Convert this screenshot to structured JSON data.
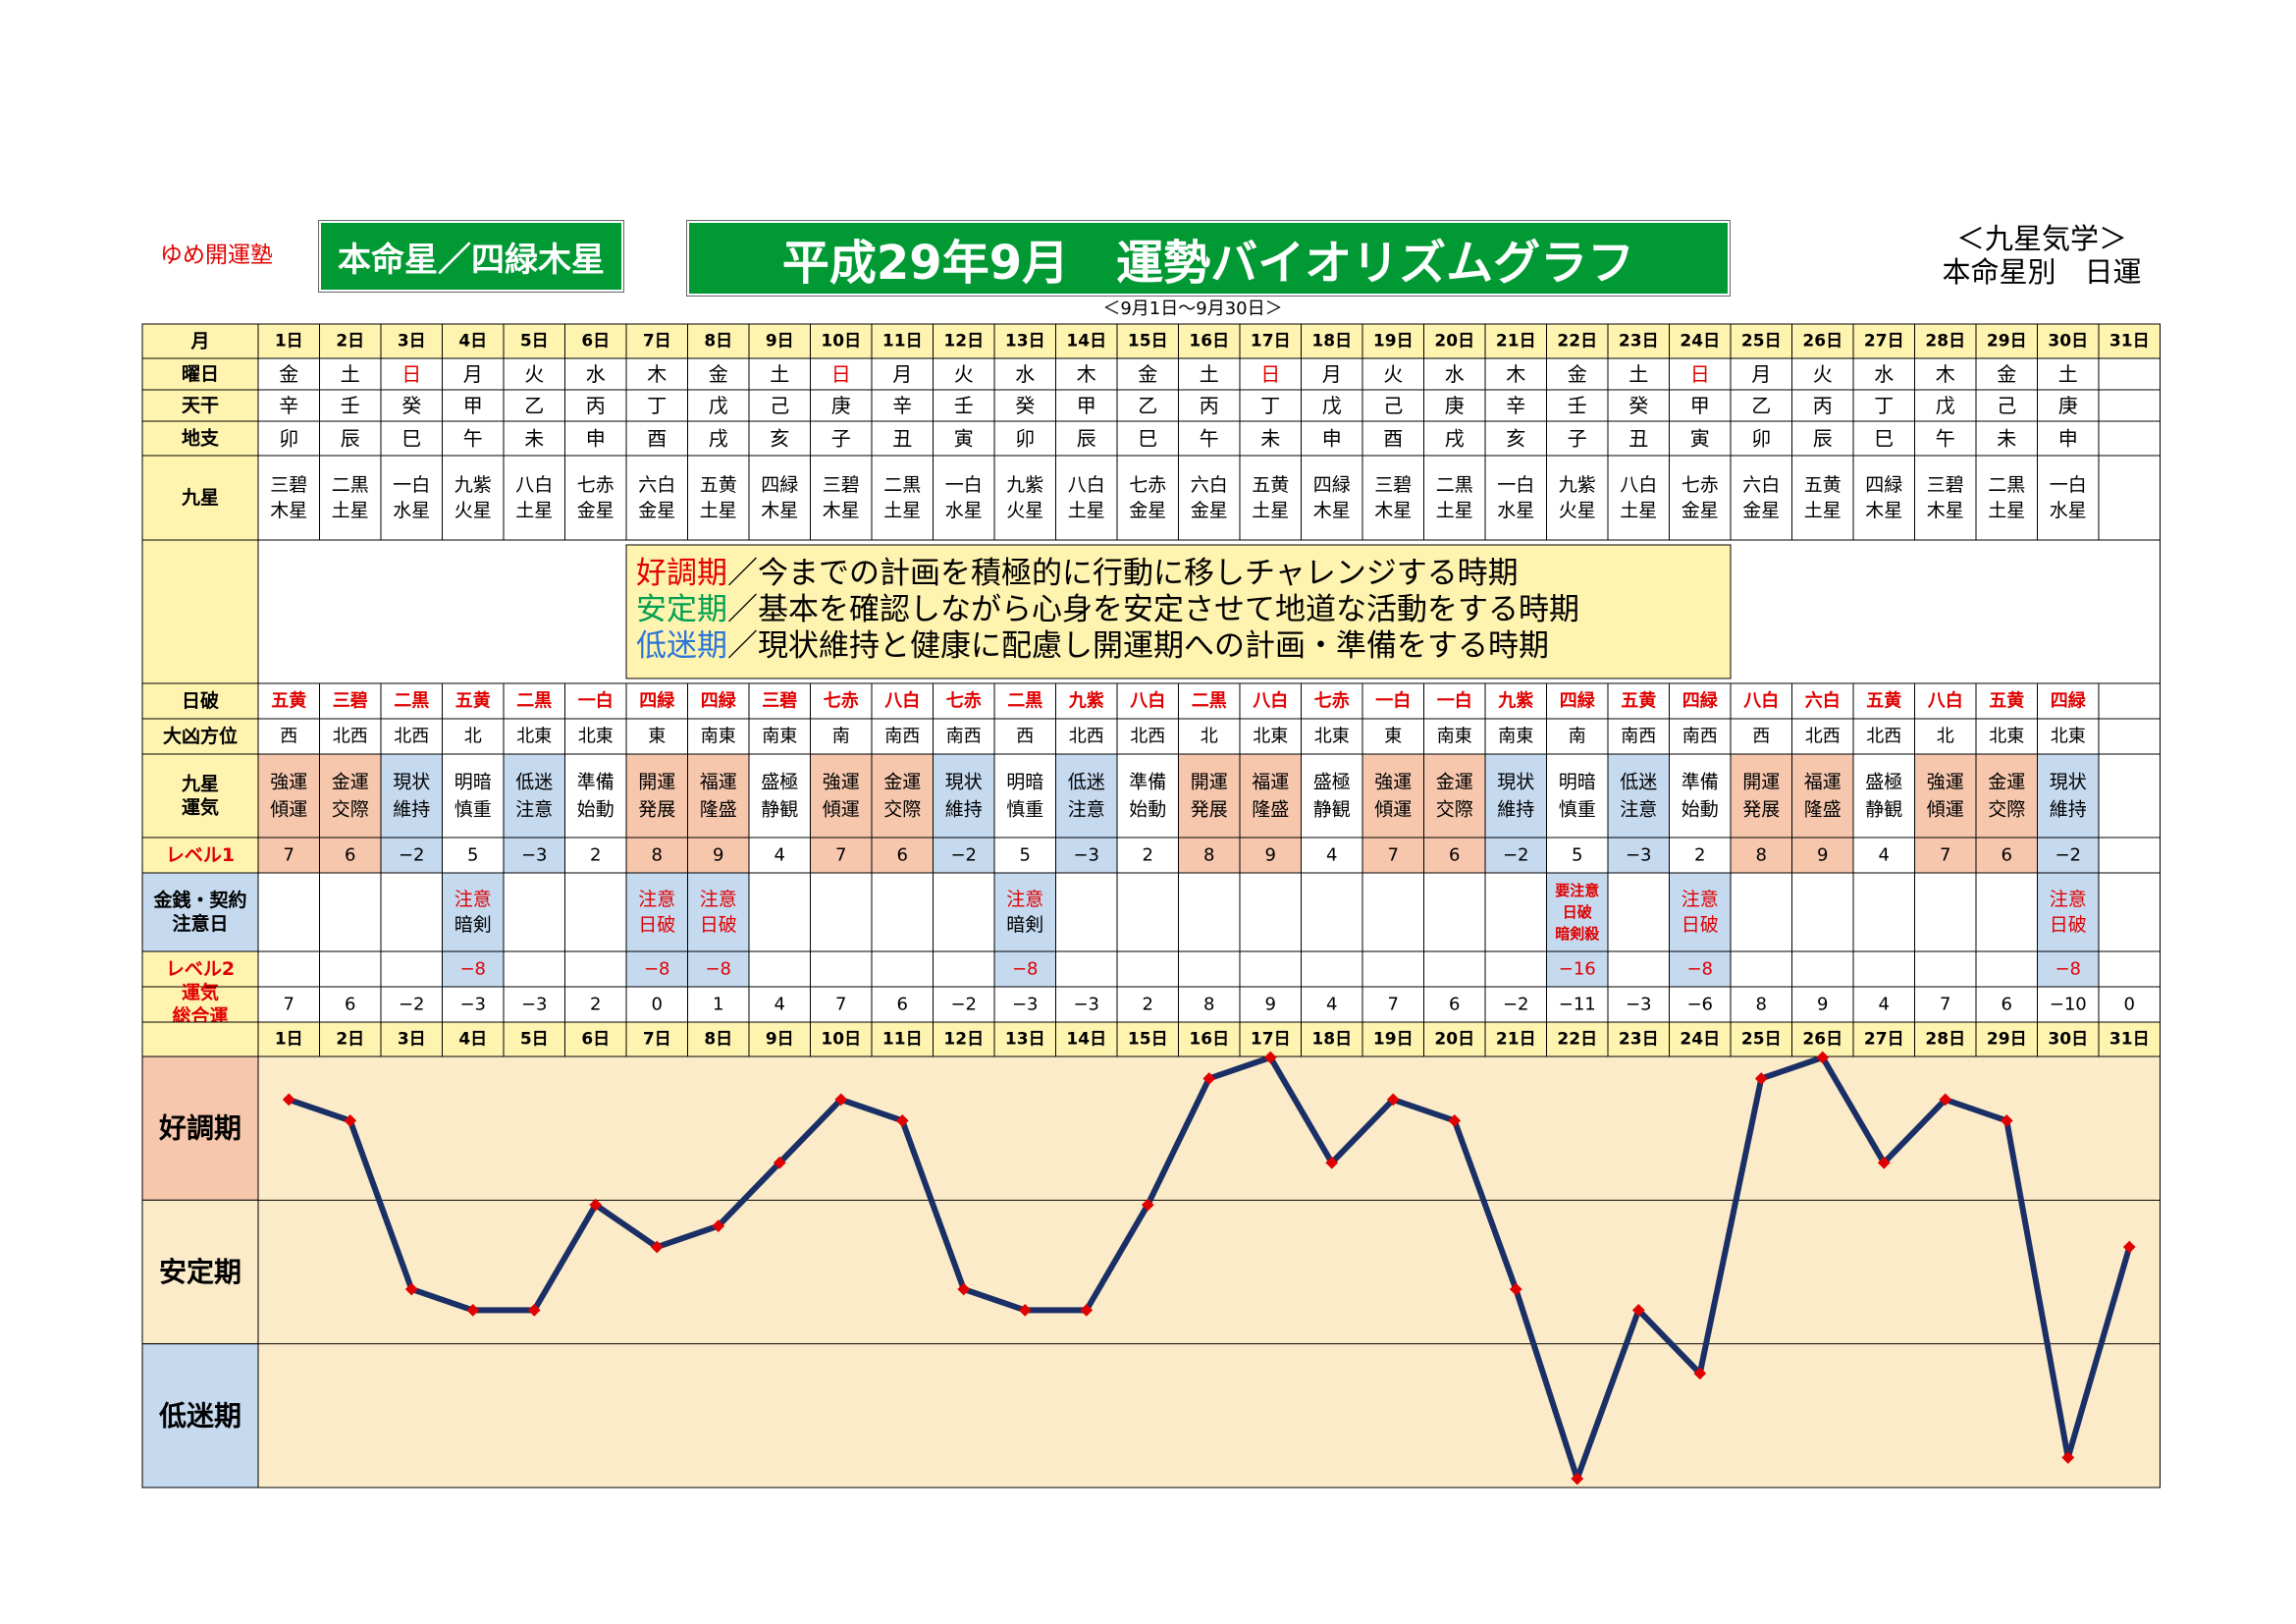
{
  "header": {
    "brand": "ゆめ開運塾",
    "honmeisei": "本命星／四緑木星",
    "title": "平成29年9月　運勢バイオリズムグラフ",
    "range": "＜9月1日～9月30日＞",
    "system_line1": "＜九星気学＞",
    "system_line2": "本命星別　日運"
  },
  "row_labels": {
    "month": "月",
    "weekday": "曜日",
    "tenkan": "天干",
    "chishi": "地支",
    "kyusei": "九星",
    "nippa": "日破",
    "daikyo": "大凶方位",
    "unki": [
      "九星",
      "運気"
    ],
    "level1": "レベル1",
    "caution": [
      "金銭・契約",
      "注意日"
    ],
    "level2": "レベル2",
    "total": [
      "運気",
      "総合運"
    ]
  },
  "days": [
    "1日",
    "2日",
    "3日",
    "4日",
    "5日",
    "6日",
    "7日",
    "8日",
    "9日",
    "10日",
    "11日",
    "12日",
    "13日",
    "14日",
    "15日",
    "16日",
    "17日",
    "18日",
    "19日",
    "20日",
    "21日",
    "22日",
    "23日",
    "24日",
    "25日",
    "26日",
    "27日",
    "28日",
    "29日",
    "30日",
    "31日"
  ],
  "weekday": [
    "金",
    "土",
    "日",
    "月",
    "火",
    "水",
    "木",
    "金",
    "土",
    "日",
    "月",
    "火",
    "水",
    "木",
    "金",
    "土",
    "日",
    "月",
    "火",
    "水",
    "木",
    "金",
    "土",
    "日",
    "月",
    "火",
    "水",
    "木",
    "金",
    "土",
    ""
  ],
  "tenkan": [
    "辛",
    "壬",
    "癸",
    "甲",
    "乙",
    "丙",
    "丁",
    "戊",
    "己",
    "庚",
    "辛",
    "壬",
    "癸",
    "甲",
    "乙",
    "丙",
    "丁",
    "戊",
    "己",
    "庚",
    "辛",
    "壬",
    "癸",
    "甲",
    "乙",
    "丙",
    "丁",
    "戊",
    "己",
    "庚",
    ""
  ],
  "chishi": [
    "卯",
    "辰",
    "巳",
    "午",
    "未",
    "申",
    "酉",
    "戌",
    "亥",
    "子",
    "丑",
    "寅",
    "卯",
    "辰",
    "巳",
    "午",
    "未",
    "申",
    "酉",
    "戌",
    "亥",
    "子",
    "丑",
    "寅",
    "卯",
    "辰",
    "巳",
    "午",
    "未",
    "申",
    ""
  ],
  "kyusei": [
    [
      "三碧",
      "木星"
    ],
    [
      "二黒",
      "土星"
    ],
    [
      "一白",
      "水星"
    ],
    [
      "九紫",
      "火星"
    ],
    [
      "八白",
      "土星"
    ],
    [
      "七赤",
      "金星"
    ],
    [
      "六白",
      "金星"
    ],
    [
      "五黄",
      "土星"
    ],
    [
      "四緑",
      "木星"
    ],
    [
      "三碧",
      "木星"
    ],
    [
      "二黒",
      "土星"
    ],
    [
      "一白",
      "水星"
    ],
    [
      "九紫",
      "火星"
    ],
    [
      "八白",
      "土星"
    ],
    [
      "七赤",
      "金星"
    ],
    [
      "六白",
      "金星"
    ],
    [
      "五黄",
      "土星"
    ],
    [
      "四緑",
      "木星"
    ],
    [
      "三碧",
      "木星"
    ],
    [
      "二黒",
      "土星"
    ],
    [
      "一白",
      "水星"
    ],
    [
      "九紫",
      "火星"
    ],
    [
      "八白",
      "土星"
    ],
    [
      "七赤",
      "金星"
    ],
    [
      "六白",
      "金星"
    ],
    [
      "五黄",
      "土星"
    ],
    [
      "四緑",
      "木星"
    ],
    [
      "三碧",
      "木星"
    ],
    [
      "二黒",
      "土星"
    ],
    [
      "一白",
      "水星"
    ],
    [
      "",
      ""
    ]
  ],
  "legend": [
    {
      "term": "好調期",
      "text": "／今までの計画を積極的に行動に移しチャレンジする時期",
      "color": "#e60000"
    },
    {
      "term": "安定期",
      "text": "／基本を確認しながら心身を安定させて地道な活動をする時期",
      "color": "#00a050"
    },
    {
      "term": "低迷期",
      "text": "／現状維持と健康に配慮し開運期への計画・準備をする時期",
      "color": "#2a74d6"
    }
  ],
  "nippa": [
    "五黄",
    "三碧",
    "二黒",
    "五黄",
    "二黒",
    "一白",
    "四緑",
    "四緑",
    "三碧",
    "七赤",
    "八白",
    "七赤",
    "二黒",
    "九紫",
    "八白",
    "二黒",
    "八白",
    "七赤",
    "一白",
    "一白",
    "九紫",
    "四緑",
    "五黄",
    "四緑",
    "八白",
    "六白",
    "五黄",
    "八白",
    "五黄",
    "四緑",
    ""
  ],
  "daikyo": [
    "西",
    "北西",
    "北西",
    "北",
    "北東",
    "北東",
    "東",
    "南東",
    "南東",
    "南",
    "南西",
    "南西",
    "西",
    "北西",
    "北西",
    "北",
    "北東",
    "北東",
    "東",
    "南東",
    "南東",
    "南",
    "南西",
    "南西",
    "西",
    "北西",
    "北西",
    "北",
    "北東",
    "北東",
    ""
  ],
  "unki": [
    [
      "強運",
      "傾運"
    ],
    [
      "金運",
      "交際"
    ],
    [
      "現状",
      "維持"
    ],
    [
      "明暗",
      "慎重"
    ],
    [
      "低迷",
      "注意"
    ],
    [
      "準備",
      "始動"
    ],
    [
      "開運",
      "発展"
    ],
    [
      "福運",
      "隆盛"
    ],
    [
      "盛極",
      "静観"
    ],
    [
      "強運",
      "傾運"
    ],
    [
      "金運",
      "交際"
    ],
    [
      "現状",
      "維持"
    ],
    [
      "明暗",
      "慎重"
    ],
    [
      "低迷",
      "注意"
    ],
    [
      "準備",
      "始動"
    ],
    [
      "開運",
      "発展"
    ],
    [
      "福運",
      "隆盛"
    ],
    [
      "盛極",
      "静観"
    ],
    [
      "強運",
      "傾運"
    ],
    [
      "金運",
      "交際"
    ],
    [
      "現状",
      "維持"
    ],
    [
      "明暗",
      "慎重"
    ],
    [
      "低迷",
      "注意"
    ],
    [
      "準備",
      "始動"
    ],
    [
      "開運",
      "発展"
    ],
    [
      "福運",
      "隆盛"
    ],
    [
      "盛極",
      "静観"
    ],
    [
      "強運",
      "傾運"
    ],
    [
      "金運",
      "交際"
    ],
    [
      "現状",
      "維持"
    ],
    [
      "",
      ""
    ]
  ],
  "level1": [
    "7",
    "6",
    "−2",
    "5",
    "−3",
    "2",
    "8",
    "9",
    "4",
    "7",
    "6",
    "−2",
    "5",
    "−3",
    "2",
    "8",
    "9",
    "4",
    "7",
    "6",
    "−2",
    "5",
    "−3",
    "2",
    "8",
    "9",
    "4",
    "7",
    "6",
    "−2",
    ""
  ],
  "caution": [
    [],
    [],
    [],
    [
      "注意",
      "暗剣"
    ],
    [],
    [],
    [
      "注意",
      "日破"
    ],
    [
      "注意",
      "日破"
    ],
    [],
    [],
    [],
    [],
    [
      "注意",
      "暗剣"
    ],
    [],
    [],
    [],
    [],
    [],
    [],
    [],
    [],
    [
      "要注意",
      "日破",
      "暗剣殺"
    ],
    [],
    [
      "注意",
      "日破"
    ],
    [],
    [],
    [],
    [],
    [],
    [
      "注意",
      "日破"
    ],
    []
  ],
  "level2": [
    "",
    "",
    "",
    "−8",
    "",
    "",
    "−8",
    "−8",
    "",
    "",
    "",
    "",
    "−8",
    "",
    "",
    "",
    "",
    "",
    "",
    "",
    "",
    "−16",
    "",
    "−8",
    "",
    "",
    "",
    "",
    "",
    "−8",
    ""
  ],
  "total": [
    "7",
    "6",
    "−2",
    "−3",
    "−3",
    "2",
    "0",
    "1",
    "4",
    "7",
    "6",
    "−2",
    "−3",
    "−3",
    "2",
    "8",
    "9",
    "4",
    "7",
    "6",
    "−2",
    "−11",
    "−3",
    "−6",
    "8",
    "9",
    "4",
    "7",
    "6",
    "−10",
    "0"
  ],
  "colors": {
    "header_yellow": "#fff3b0",
    "good": "#f6c7ad",
    "stable": "#fbebc9",
    "low": "#c5d9ef",
    "kyusei_red": "#e00000",
    "line": "#1a2f66",
    "marker": "#e00000",
    "band_a": "#f6c7ad",
    "band_b": "#fbebc9",
    "band_c": "#c5d9ef",
    "plot_bg": "#fbebc9",
    "title_green": "#009933"
  },
  "chart_data": {
    "type": "line",
    "categories": [
      "1日",
      "2日",
      "3日",
      "4日",
      "5日",
      "6日",
      "7日",
      "8日",
      "9日",
      "10日",
      "11日",
      "12日",
      "13日",
      "14日",
      "15日",
      "16日",
      "17日",
      "18日",
      "19日",
      "20日",
      "21日",
      "22日",
      "23日",
      "24日",
      "25日",
      "26日",
      "27日",
      "28日",
      "29日",
      "30日",
      "31日"
    ],
    "series": [
      {
        "values": [
          7,
          6,
          -2,
          -3,
          -3,
          2,
          0,
          1,
          4,
          7,
          6,
          -2,
          -3,
          -3,
          2,
          8,
          9,
          4,
          7,
          6,
          -2,
          -11,
          -3,
          -6,
          8,
          9,
          4,
          7,
          6,
          -10,
          0
        ]
      }
    ],
    "bands": [
      "好調期",
      "安定期",
      "低迷期"
    ],
    "ylim": [
      -11,
      9
    ]
  }
}
